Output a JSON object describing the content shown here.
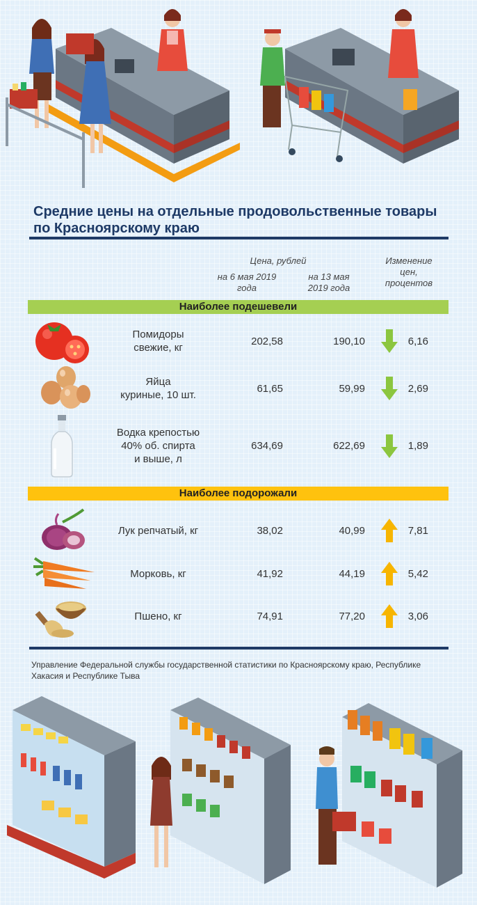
{
  "title": "Средние цены на отдельные продовольственные товары по Красноярскому краю",
  "table_headers": {
    "price": "Цена, рублей",
    "date1": "на 6 мая 2019 года",
    "date2": "на 13 мая 2019 года",
    "change": "Изменение цен, процентов"
  },
  "sections": [
    {
      "label": "Наиболее подешевели",
      "color": "#a5cf52",
      "direction": "down",
      "items": [
        {
          "icon": "tomato-icon",
          "name": "Помидоры\nсвежие, кг",
          "price1": "202,58",
          "price2": "190,10",
          "change": "6,16"
        },
        {
          "icon": "eggs-icon",
          "name": "Яйца\nкуриные, 10 шт.",
          "price1": "61,65",
          "price2": "59,99",
          "change": "2,69"
        },
        {
          "icon": "vodka-bottle-icon",
          "name": "Водка крепостью\n40% об. спирта\nи выше, л",
          "price1": "634,69",
          "price2": "622,69",
          "change": "1,89"
        }
      ]
    },
    {
      "label": "Наиболее подорожали",
      "color": "#ffc20e",
      "direction": "up",
      "items": [
        {
          "icon": "onion-icon",
          "name": "Лук репчатый, кг",
          "price1": "38,02",
          "price2": "40,99",
          "change": "7,81"
        },
        {
          "icon": "carrot-icon",
          "name": "Морковь, кг",
          "price1": "41,92",
          "price2": "44,19",
          "change": "5,42"
        },
        {
          "icon": "millet-icon",
          "name": "Пшено, кг",
          "price1": "74,91",
          "price2": "77,20",
          "change": "3,06"
        }
      ]
    }
  ],
  "colors": {
    "accent": "#1e3a66",
    "arrow_down": "#8cc63f",
    "arrow_up": "#f7b500"
  },
  "footer": "Управление Федеральной службы государственной статистики по Красноярскому краю, Республике Хакасия и Республике Тыва"
}
